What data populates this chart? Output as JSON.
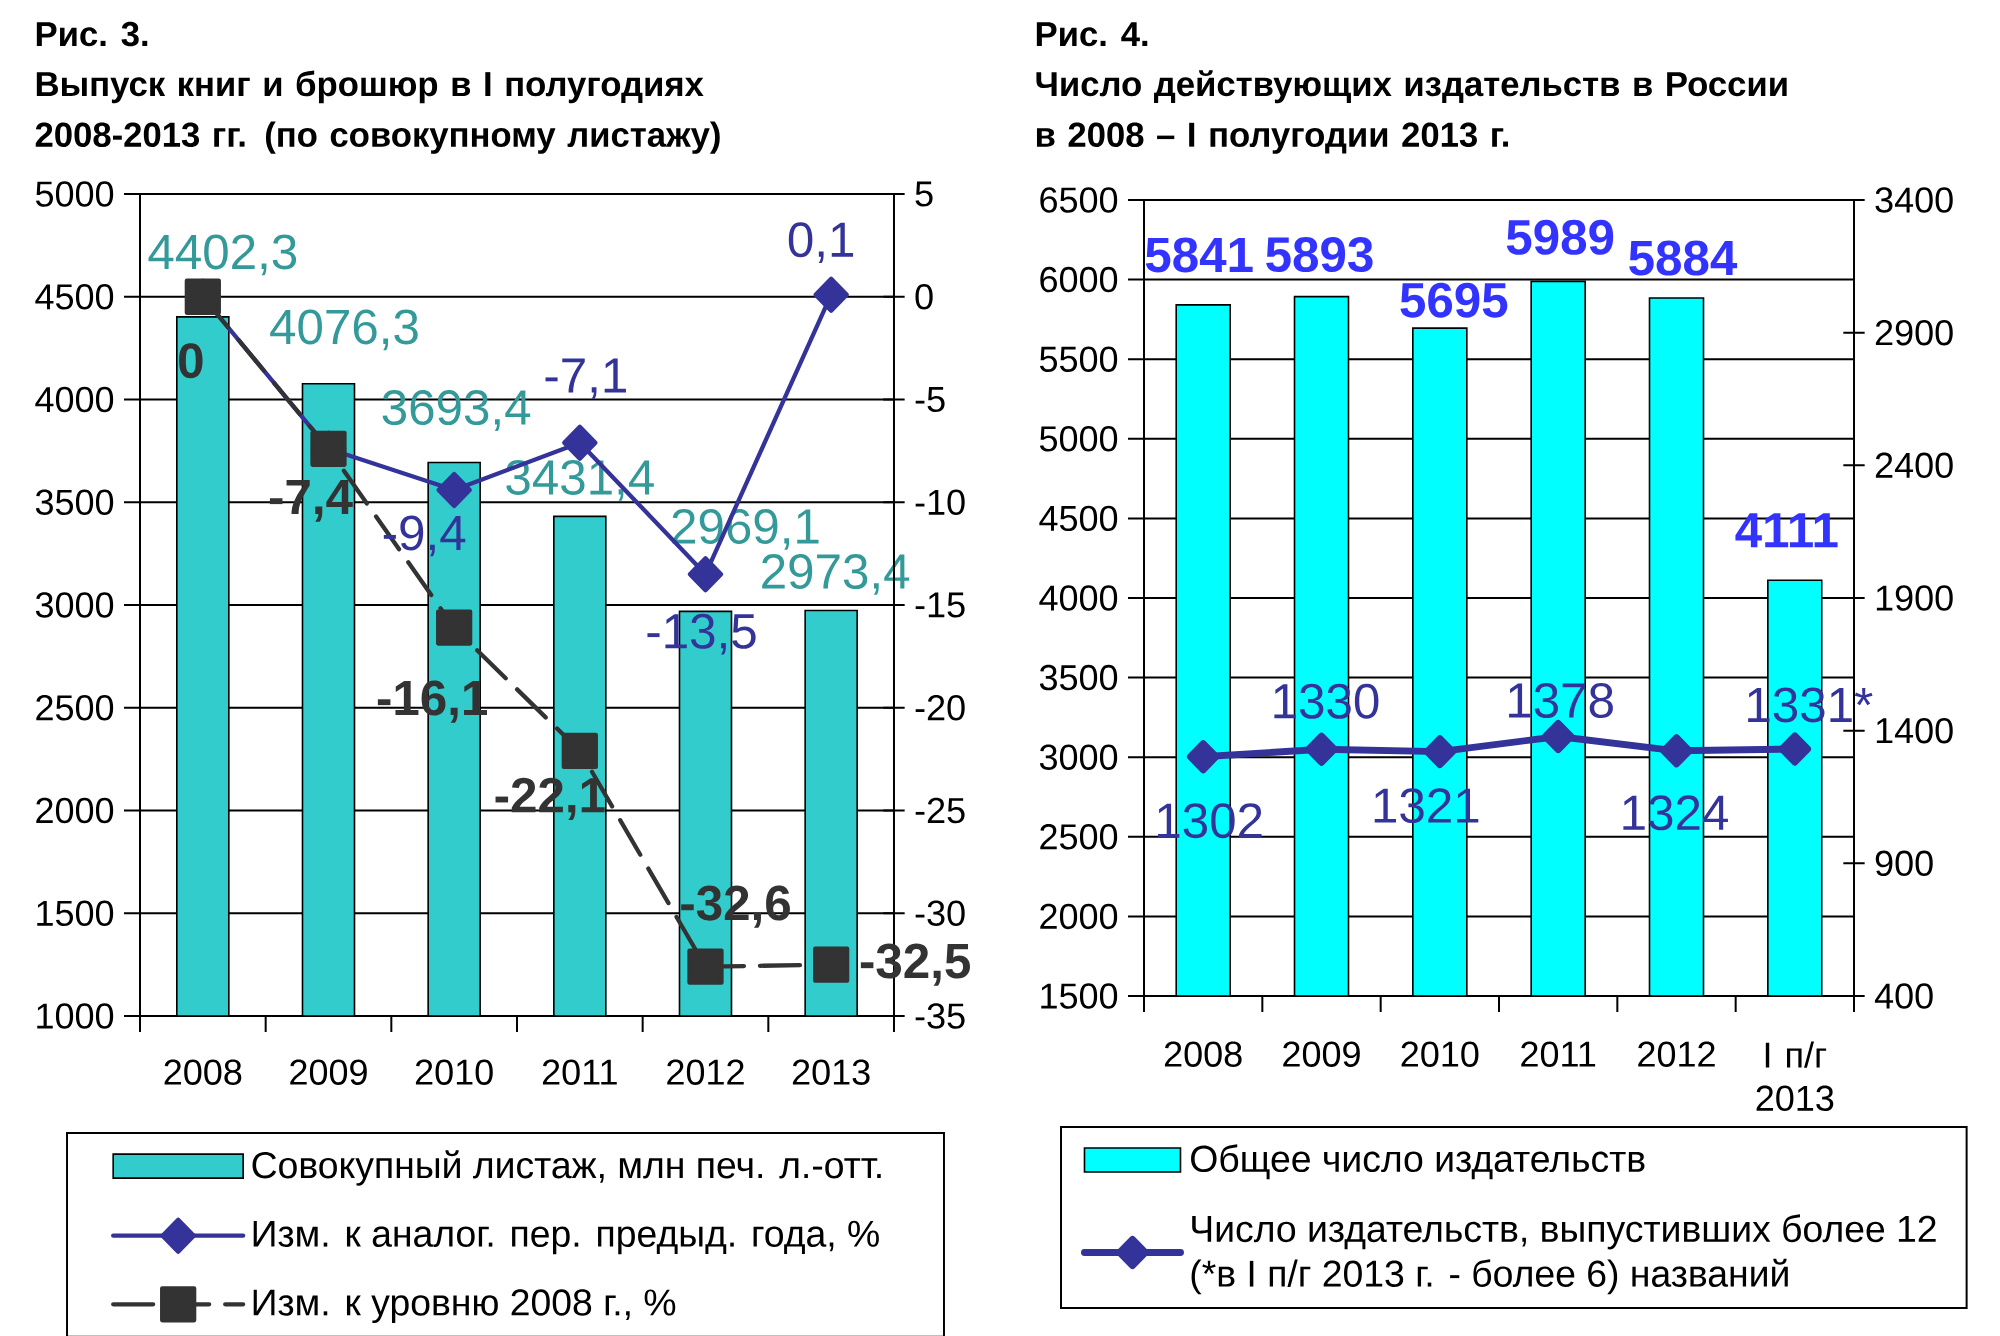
{
  "chart_data": [
    {
      "type": "bar",
      "title": "Рис. 3.",
      "subtitle": "Выпуск книг и брошюр в I полугодиях 2008-2013 гг. (по совокупному листажу)",
      "categories": [
        "2008",
        "2009",
        "2010",
        "2011",
        "2012",
        "2013"
      ],
      "series": [
        {
          "name": "Совокупный листаж, млн печ. л.-отт.",
          "color": "#33cccc",
          "values": [
            4402.3,
            4076.3,
            3693.4,
            3431.4,
            2969.1,
            2973.4
          ],
          "value_labels": [
            "4402,3",
            "4076,3",
            "3693,4",
            "3431,4",
            "2969,1",
            "2973,4"
          ]
        },
        {
          "name": "Изм. к аналог. пер. предыд. года, %",
          "type": "line",
          "axis": "y2",
          "color": "#333399",
          "marker": "diamond",
          "values": [
            0,
            -7.4,
            -9.4,
            -7.1,
            -13.5,
            0.1
          ],
          "value_labels": [
            null,
            null,
            "-9,4",
            "-7,1",
            "-13,5",
            "0,1"
          ]
        },
        {
          "name": "Изм. к уровню 2008 г., %",
          "type": "line",
          "axis": "y2",
          "color": "#333333",
          "marker": "square",
          "line_style": "dashed",
          "values": [
            0,
            -7.4,
            -16.1,
            -22.1,
            -32.6,
            -32.5
          ],
          "value_labels": [
            "0",
            "-7,4",
            "-16,1",
            "-22,1",
            "-32,6",
            "-32,5"
          ]
        }
      ],
      "ylim": [
        1000,
        5000
      ],
      "yticks": [
        1000,
        1500,
        2000,
        2500,
        3000,
        3500,
        4000,
        4500,
        5000
      ],
      "y2lim": [
        -35,
        5
      ],
      "y2ticks": [
        -35,
        -30,
        -25,
        -20,
        -15,
        -10,
        -5,
        0,
        5
      ],
      "grid": "y",
      "legend": "bottom"
    },
    {
      "type": "bar",
      "title": "Рис. 4.",
      "subtitle": "Число действующих издательств в России в 2008 – I полугодии 2013 г.",
      "categories": [
        "2008",
        "2009",
        "2010",
        "2011",
        "2012",
        "I п/г 2013"
      ],
      "series": [
        {
          "name": "Общее число издательств",
          "color": "#00ffff",
          "values": [
            5841,
            5893,
            5695,
            5989,
            5884,
            4111
          ],
          "value_labels": [
            "5841",
            "5893",
            "5695",
            "5989",
            "5884",
            "4111"
          ]
        },
        {
          "name": "Число издательств, выпустивших более 12 (*в I п/г 2013 г. - более 6) названий",
          "type": "line",
          "axis": "y2",
          "color": "#333399",
          "marker": "diamond",
          "values": [
            1302,
            1330,
            1321,
            1378,
            1324,
            1331
          ],
          "value_labels": [
            "1302",
            "1330",
            "1321",
            "1378",
            "1324",
            "1331*"
          ]
        }
      ],
      "ylim": [
        1500,
        6500
      ],
      "yticks": [
        1500,
        2000,
        2500,
        3000,
        3500,
        4000,
        4500,
        5000,
        5500,
        6000,
        6500
      ],
      "y2lim": [
        400,
        3400
      ],
      "y2ticks": [
        400,
        900,
        1400,
        1900,
        2400,
        2900,
        3400
      ],
      "grid": "y",
      "legend": "bottom"
    }
  ]
}
